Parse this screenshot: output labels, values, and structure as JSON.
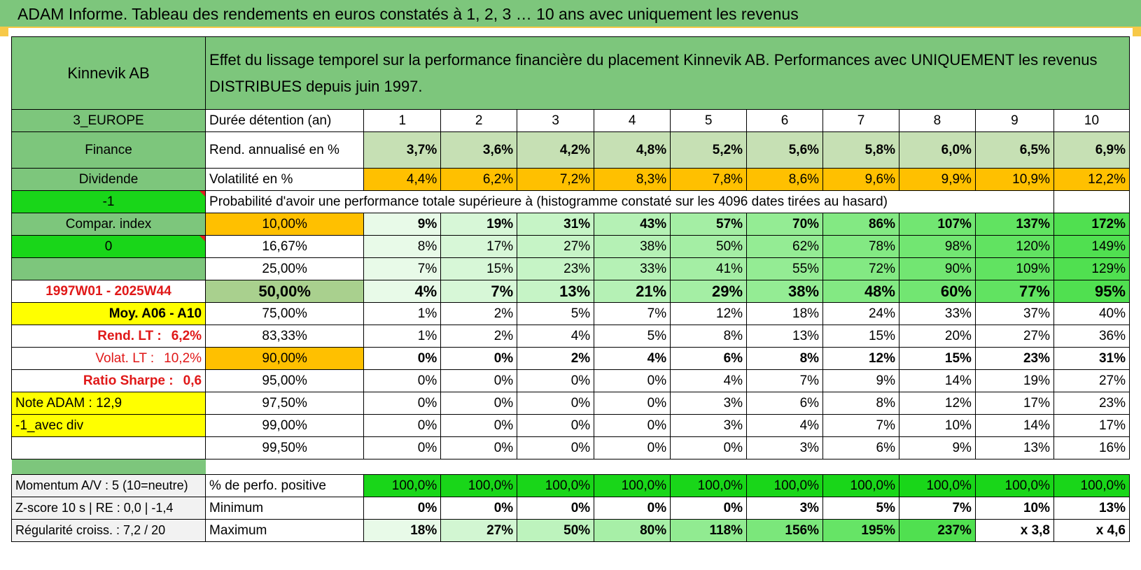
{
  "title": "ADAM Informe. Tableau des rendements en euros constatés à 1, 2, 3 … 10 ans avec uniquement les revenus",
  "header": {
    "name": "Kinnevik AB",
    "description": "Effet du lissage temporel sur la performance financière du placement Kinnevik AB. Performances avec UNIQUEMENT les revenus DISTRIBUES depuis juin 1997."
  },
  "side": {
    "region": "3_EUROPE",
    "sector": "Finance",
    "type": "Dividende",
    "code1": "-1",
    "compar": "Compar. index",
    "code0": "0",
    "period": "1997W01 - 2025W44",
    "moy": "Moy. A06 - A10",
    "rend_lt_label": "Rend. LT :",
    "rend_lt_value": "6,2%",
    "volat_lt_label": "Volat. LT :",
    "volat_lt_value": "10,2%",
    "sharpe_label": "Ratio Sharpe :",
    "sharpe_value": "0,6",
    "note": "Note ADAM : 12,9",
    "avec_div": "-1_avec div",
    "momentum": "Momentum A/V : 5 (10=neutre)",
    "zscore": "Z-score 10 s | RE : 0,0 | -1,4",
    "regularite": "Régularité croiss. : 7,2 / 20"
  },
  "duration_label": "Durée détention (an)",
  "years": [
    "1",
    "2",
    "3",
    "4",
    "5",
    "6",
    "7",
    "8",
    "9",
    "10"
  ],
  "rend_label": "Rend. annualisé en %",
  "rend": [
    "3,7%",
    "3,6%",
    "4,2%",
    "4,8%",
    "5,2%",
    "5,6%",
    "5,8%",
    "6,0%",
    "6,5%",
    "6,9%"
  ],
  "vol_label": "Volatilité en %",
  "vol": [
    "4,4%",
    "6,2%",
    "7,2%",
    "8,3%",
    "7,8%",
    "8,6%",
    "9,6%",
    "9,9%",
    "10,9%",
    "12,2%"
  ],
  "prob_caption": "Probabilité d'avoir une performance totale supérieure à (histogramme constaté sur les 4096 dates tirées au hasard)",
  "prob_rows": [
    {
      "pct": "10,00%",
      "values": [
        "9%",
        "19%",
        "31%",
        "43%",
        "57%",
        "70%",
        "86%",
        "107%",
        "137%",
        "172%"
      ]
    },
    {
      "pct": "16,67%",
      "values": [
        "8%",
        "17%",
        "27%",
        "38%",
        "50%",
        "62%",
        "78%",
        "98%",
        "120%",
        "149%"
      ]
    },
    {
      "pct": "25,00%",
      "values": [
        "7%",
        "15%",
        "23%",
        "33%",
        "41%",
        "55%",
        "72%",
        "90%",
        "109%",
        "129%"
      ]
    },
    {
      "pct": "50,00%",
      "values": [
        "4%",
        "7%",
        "13%",
        "21%",
        "29%",
        "38%",
        "48%",
        "60%",
        "77%",
        "95%"
      ]
    },
    {
      "pct": "75,00%",
      "values": [
        "1%",
        "2%",
        "5%",
        "7%",
        "12%",
        "18%",
        "24%",
        "33%",
        "37%",
        "40%"
      ]
    },
    {
      "pct": "83,33%",
      "values": [
        "1%",
        "2%",
        "4%",
        "5%",
        "8%",
        "13%",
        "15%",
        "20%",
        "27%",
        "36%"
      ]
    },
    {
      "pct": "90,00%",
      "values": [
        "0%",
        "0%",
        "2%",
        "4%",
        "6%",
        "8%",
        "12%",
        "15%",
        "23%",
        "31%"
      ]
    },
    {
      "pct": "95,00%",
      "values": [
        "0%",
        "0%",
        "0%",
        "0%",
        "4%",
        "7%",
        "9%",
        "14%",
        "19%",
        "27%"
      ]
    },
    {
      "pct": "97,50%",
      "values": [
        "0%",
        "0%",
        "0%",
        "0%",
        "3%",
        "6%",
        "8%",
        "12%",
        "17%",
        "23%"
      ]
    },
    {
      "pct": "99,00%",
      "values": [
        "0%",
        "0%",
        "0%",
        "0%",
        "3%",
        "4%",
        "7%",
        "10%",
        "14%",
        "17%"
      ]
    },
    {
      "pct": "99,50%",
      "values": [
        "0%",
        "0%",
        "0%",
        "0%",
        "0%",
        "3%",
        "6%",
        "9%",
        "13%",
        "16%"
      ]
    }
  ],
  "positive_label": "% de perfo. positive",
  "positive": [
    "100,0%",
    "100,0%",
    "100,0%",
    "100,0%",
    "100,0%",
    "100,0%",
    "100,0%",
    "100,0%",
    "100,0%",
    "100,0%"
  ],
  "min_label": "Minimum",
  "minimum": [
    "0%",
    "0%",
    "0%",
    "0%",
    "0%",
    "3%",
    "5%",
    "7%",
    "10%",
    "13%"
  ],
  "max_label": "Maximum",
  "maximum": [
    "18%",
    "27%",
    "50%",
    "80%",
    "118%",
    "156%",
    "195%",
    "237%",
    "x 3,8",
    "x 4,6"
  ],
  "colors": {
    "header_green": "#7dc67c",
    "bright_green": "#19d619",
    "orange": "#ffc000",
    "yellow": "#ffff00",
    "red_text": "#e01818"
  }
}
